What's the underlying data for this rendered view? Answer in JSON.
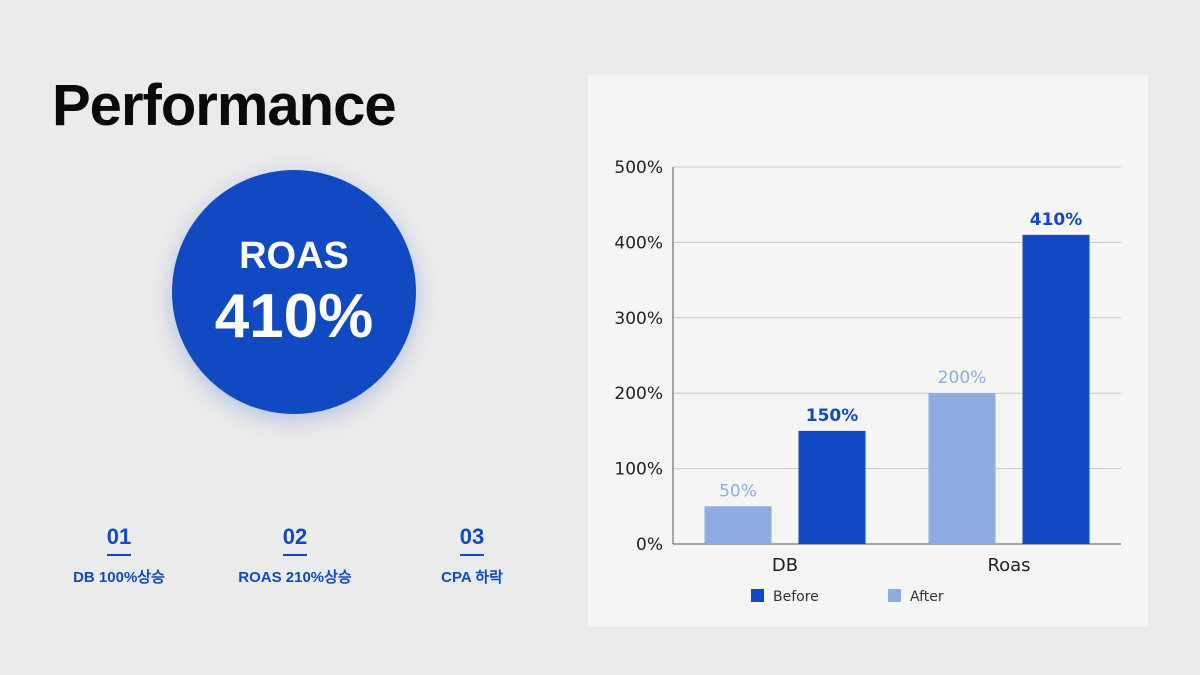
{
  "header": {
    "title": "Performance"
  },
  "highlight": {
    "metric": "ROAS",
    "value": "410%",
    "color": "#1149c2"
  },
  "kpis": [
    {
      "number": "01",
      "label": "DB 100%상승"
    },
    {
      "number": "02",
      "label": "ROAS 210%상승"
    },
    {
      "number": "03",
      "label": "CPA 하락"
    }
  ],
  "colors": {
    "before": "#1149c2",
    "after": "#8eabe2",
    "grid": "#c9c9c9",
    "axis": "#555555"
  },
  "chart_data": {
    "type": "bar",
    "categories": [
      "DB",
      "Roas"
    ],
    "series": [
      {
        "name": "After",
        "values": [
          50,
          200
        ],
        "labels": [
          "50%",
          "200%"
        ]
      },
      {
        "name": "Before",
        "values": [
          150,
          410
        ],
        "labels": [
          "150%",
          "410%"
        ]
      }
    ],
    "legend_order": [
      "Before",
      "After"
    ],
    "ylim": [
      0,
      500
    ],
    "yticks": [
      0,
      100,
      200,
      300,
      400,
      500
    ],
    "ytick_labels": [
      "0%",
      "100%",
      "200%",
      "300%",
      "400%",
      "500%"
    ],
    "grid": true,
    "legend": "bottom"
  }
}
